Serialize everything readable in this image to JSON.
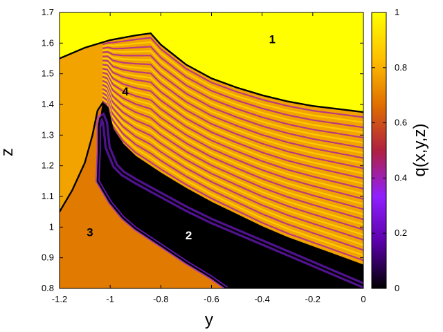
{
  "chart_data": {
    "type": "heatmap",
    "xlabel": "y",
    "ylabel": "z",
    "colorbar_label": "q(x,y,z)",
    "xlim": [
      -1.2,
      0
    ],
    "ylim": [
      0.8,
      1.7
    ],
    "zlim": [
      0,
      1
    ],
    "x_ticks": [
      "-1.2",
      "-1",
      "-0.8",
      "-0.6",
      "-0.4",
      "-0.2",
      "0"
    ],
    "y_ticks": [
      "0.8",
      "0.9",
      "1",
      "1.1",
      "1.2",
      "1.3",
      "1.4",
      "1.5",
      "1.6",
      "1.7"
    ],
    "colorbar_ticks": [
      "0",
      "0.2",
      "0.4",
      "0.6",
      "0.8",
      "1"
    ],
    "colormap": [
      "#000000",
      "#5a00a8",
      "#9020ff",
      "#b02040",
      "#e07000",
      "#ffc000",
      "#ffff00"
    ],
    "region_labels": [
      {
        "text": "1",
        "y": -0.36,
        "z": 1.61,
        "color": "#000000"
      },
      {
        "text": "2",
        "y": -0.69,
        "z": 0.97,
        "color": "#ffffff"
      },
      {
        "text": "3",
        "y": -1.08,
        "z": 0.98,
        "color": "#000000"
      },
      {
        "text": "4",
        "y": -0.94,
        "z": 1.44,
        "color": "#000000"
      }
    ],
    "boundary_curves": [
      {
        "points": [
          [
            -1.2,
            1.55
          ],
          [
            -1.1,
            1.585
          ],
          [
            -1.0,
            1.61
          ],
          [
            -0.9,
            1.625
          ],
          [
            -0.84,
            1.632
          ],
          [
            -0.8,
            1.595
          ],
          [
            -0.7,
            1.53
          ],
          [
            -0.6,
            1.485
          ],
          [
            -0.5,
            1.455
          ],
          [
            -0.4,
            1.43
          ],
          [
            -0.3,
            1.41
          ],
          [
            -0.2,
            1.395
          ],
          [
            -0.1,
            1.385
          ],
          [
            0.0,
            1.375
          ]
        ]
      },
      {
        "points": [
          [
            -1.2,
            1.05
          ],
          [
            -1.15,
            1.12
          ],
          [
            -1.1,
            1.21
          ],
          [
            -1.07,
            1.3
          ],
          [
            -1.05,
            1.38
          ],
          [
            -1.03,
            1.405
          ],
          [
            -1.01,
            1.39
          ],
          [
            -0.99,
            1.32
          ],
          [
            -0.95,
            1.27
          ],
          [
            -0.9,
            1.23
          ],
          [
            -0.8,
            1.175
          ],
          [
            -0.7,
            1.125
          ],
          [
            -0.6,
            1.08
          ],
          [
            -0.5,
            1.04
          ],
          [
            -0.4,
            1.0
          ],
          [
            -0.3,
            0.965
          ],
          [
            -0.2,
            0.935
          ],
          [
            -0.1,
            0.905
          ],
          [
            0.0,
            0.875
          ]
        ]
      },
      {
        "points": [
          [
            -1.045,
            1.33
          ],
          [
            -1.04,
            1.355
          ],
          [
            -1.03,
            1.36
          ],
          [
            -1.02,
            1.34
          ],
          [
            -1.01,
            1.26
          ],
          [
            -0.98,
            1.2
          ],
          [
            -0.95,
            1.175
          ],
          [
            -0.9,
            1.15
          ],
          [
            -0.8,
            1.105
          ],
          [
            -0.7,
            1.06
          ],
          [
            -0.6,
            1.02
          ],
          [
            -0.5,
            0.985
          ],
          [
            -0.4,
            0.95
          ],
          [
            -0.3,
            0.915
          ],
          [
            -0.2,
            0.88
          ],
          [
            -0.1,
            0.845
          ],
          [
            0.0,
            0.81
          ]
        ]
      },
      {
        "points": [
          [
            -1.045,
            1.33
          ],
          [
            -1.045,
            1.25
          ],
          [
            -1.05,
            1.15
          ],
          [
            -1.0,
            1.08
          ],
          [
            -0.95,
            1.03
          ],
          [
            -0.9,
            0.995
          ],
          [
            -0.8,
            0.94
          ],
          [
            -0.7,
            0.885
          ],
          [
            -0.6,
            0.835
          ],
          [
            -0.54,
            0.8
          ]
        ]
      }
    ]
  }
}
